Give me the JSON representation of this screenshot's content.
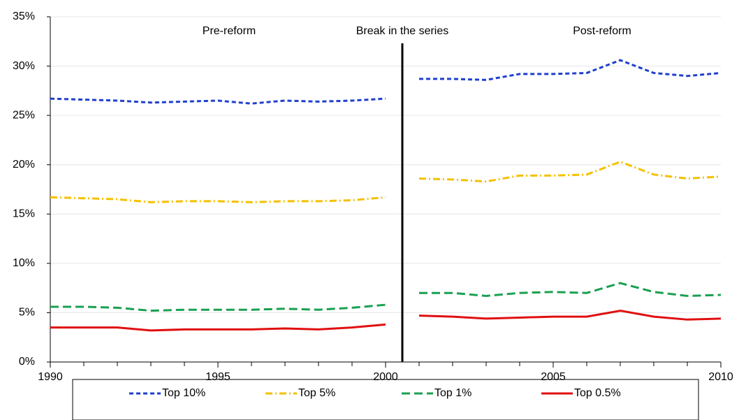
{
  "chart_data": {
    "type": "line",
    "annotations": [
      "Pre-reform",
      "Break in the series",
      "Post-reform"
    ],
    "break_between": [
      2000,
      2001
    ],
    "x": [
      1990,
      1991,
      1992,
      1993,
      1994,
      1995,
      1996,
      1997,
      1998,
      1999,
      2000,
      2001,
      2002,
      2003,
      2004,
      2005,
      2006,
      2007,
      2008,
      2009,
      2010
    ],
    "xlim": [
      1990,
      2010
    ],
    "xticks": [
      1990,
      1995,
      2000,
      2005,
      2010
    ],
    "ylim": [
      0,
      35
    ],
    "yticks": [
      {
        "value": 0,
        "label": "0%"
      },
      {
        "value": 5,
        "label": "5%"
      },
      {
        "value": 10,
        "label": "10%"
      },
      {
        "value": 15,
        "label": "15%"
      },
      {
        "value": 20,
        "label": "20%"
      },
      {
        "value": 25,
        "label": "25%"
      },
      {
        "value": 30,
        "label": "30%"
      },
      {
        "value": 35,
        "label": "35%"
      }
    ],
    "grid": true,
    "legend": "bottom",
    "series": [
      {
        "name": "Top 10%",
        "color": "#1f3fd0",
        "dash": "6,4",
        "values": [
          26.7,
          26.6,
          26.5,
          26.3,
          26.4,
          26.5,
          26.2,
          26.5,
          26.4,
          26.5,
          26.7,
          28.7,
          28.7,
          28.6,
          29.2,
          29.2,
          29.3,
          30.6,
          29.3,
          29.0,
          29.3
        ]
      },
      {
        "name": "Top 5%",
        "color": "#f5c000",
        "dash": "10,4,2,4",
        "values": [
          16.7,
          16.6,
          16.5,
          16.2,
          16.3,
          16.3,
          16.2,
          16.3,
          16.3,
          16.4,
          16.7,
          18.6,
          18.5,
          18.3,
          18.9,
          18.9,
          19.0,
          20.3,
          19.0,
          18.6,
          18.8
        ]
      },
      {
        "name": "Top 1%",
        "color": "#1aa050",
        "dash": "12,6",
        "values": [
          5.6,
          5.6,
          5.5,
          5.2,
          5.3,
          5.3,
          5.3,
          5.4,
          5.3,
          5.5,
          5.8,
          7.0,
          7.0,
          6.7,
          7.0,
          7.1,
          7.0,
          8.0,
          7.1,
          6.7,
          6.8
        ]
      },
      {
        "name": "Top 0.5%",
        "color": "#e01010",
        "dash": "",
        "values": [
          3.5,
          3.5,
          3.5,
          3.2,
          3.3,
          3.3,
          3.3,
          3.4,
          3.3,
          3.5,
          3.8,
          4.7,
          4.6,
          4.4,
          4.5,
          4.6,
          4.6,
          5.2,
          4.6,
          4.3,
          4.4
        ]
      }
    ]
  }
}
